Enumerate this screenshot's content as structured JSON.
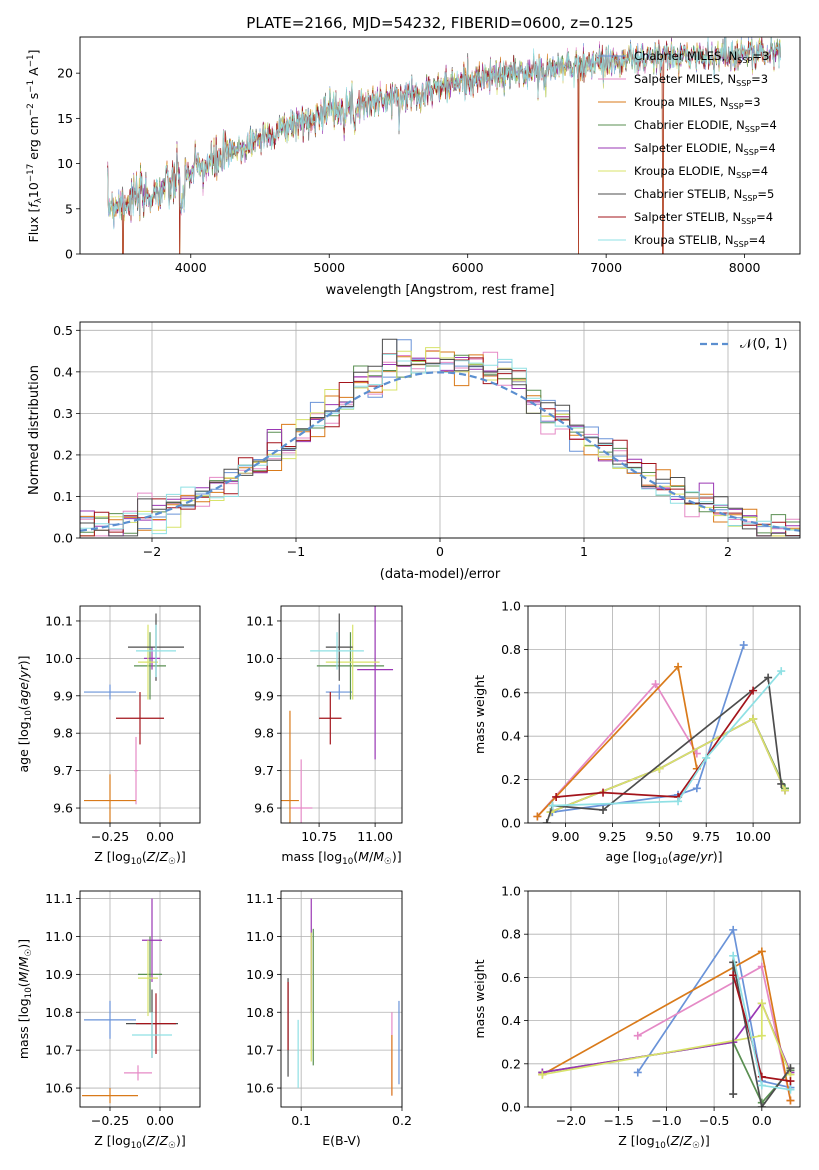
{
  "figure_title": "PLATE=2166, MJD=54232, FIBERID=0600, z=0.125",
  "colors": [
    "#6a93d8",
    "#e58ac6",
    "#d97a1a",
    "#5a8f52",
    "#9a37b4",
    "#d8e36a",
    "#4d4d4d",
    "#a3141b",
    "#8fe0e4"
  ],
  "chart_data": [
    {
      "id": "spectrum",
      "type": "line",
      "xlabel": "wavelength [Angstrom, rest frame]",
      "ylabel": "Flux [f_λ 10⁻¹⁷ erg cm⁻² s⁻¹ A⁻¹]",
      "xlim": [
        3200,
        8400
      ],
      "ylim": [
        0,
        24
      ],
      "xticks": [
        "4000",
        "5000",
        "6000",
        "7000",
        "8000"
      ],
      "yticks": [
        "0",
        "5",
        "10",
        "15",
        "20"
      ],
      "grid": false,
      "legend_position": "top-right",
      "legend": [
        {
          "name": "Chabrier MILES",
          "nssp": "3"
        },
        {
          "name": "Salpeter MILES",
          "nssp": "3"
        },
        {
          "name": "Kroupa MILES",
          "nssp": "3"
        },
        {
          "name": "Chabrier ELODIE",
          "nssp": "4"
        },
        {
          "name": "Salpeter ELODIE",
          "nssp": "4"
        },
        {
          "name": "Kroupa ELODIE",
          "nssp": "4"
        },
        {
          "name": "Chabrier STELIB",
          "nssp": "5"
        },
        {
          "name": "Salpeter STELIB",
          "nssp": "4"
        },
        {
          "name": "Kroupa STELIB",
          "nssp": "4"
        }
      ],
      "nssp_label": "N_SSP",
      "continuum": [
        [
          3400,
          5.4
        ],
        [
          3700,
          6.5
        ],
        [
          3900,
          8.0
        ],
        [
          4000,
          9.0
        ],
        [
          4300,
          11.2
        ],
        [
          4500,
          12.8
        ],
        [
          5000,
          16.0
        ],
        [
          5500,
          17.3
        ],
        [
          6000,
          19.2
        ],
        [
          6500,
          20.3
        ],
        [
          7000,
          21.3
        ],
        [
          7500,
          21.8
        ],
        [
          8000,
          22.2
        ],
        [
          8300,
          22.4
        ]
      ],
      "drops": [
        [
          3510,
          0
        ],
        [
          3920,
          0
        ],
        [
          6800,
          0
        ],
        [
          7410,
          0
        ]
      ]
    },
    {
      "id": "residuals",
      "type": "histogram",
      "xlabel": "(data-model)/error",
      "ylabel": "Normed distribution",
      "xlim": [
        -2.5,
        2.5
      ],
      "ylim": [
        0,
        0.52
      ],
      "xticks": [
        -2,
        -1,
        0,
        1,
        2
      ],
      "yticks": [
        0.0,
        0.1,
        0.2,
        0.3,
        0.4,
        0.5
      ],
      "grid": true,
      "bin_width": 0.1,
      "normal_label": "𝒩(0, 1)",
      "legend_position": "top-right"
    },
    {
      "id": "z_age",
      "type": "errorbar",
      "xlabel": "Z [log10(Z/Z☉)]",
      "ylabel": "age [log10(age/yr)]",
      "xlim": [
        -0.4,
        0.2
      ],
      "ylim": [
        9.56,
        10.14
      ],
      "xticks": [
        -0.25,
        0.0
      ],
      "xtick_labels": [
        "−0.25",
        "0.00"
      ],
      "yticks": [
        9.6,
        9.7,
        9.8,
        9.9,
        10.0,
        10.1
      ],
      "points": [
        {
          "x": -0.25,
          "xerr": 0.13,
          "y": 9.91,
          "yerr": 0.02,
          "c": 0
        },
        {
          "x": -0.12,
          "xerr": 0.01,
          "y": 9.7,
          "yerr": 0.09,
          "c": 1
        },
        {
          "x": -0.25,
          "xerr": 0.13,
          "y": 9.62,
          "yerr": 0.07,
          "c": 2
        },
        {
          "x": -0.05,
          "xerr": 0.08,
          "y": 9.98,
          "yerr": 0.09,
          "c": 3
        },
        {
          "x": -0.04,
          "xerr": 0.04,
          "y": 10.0,
          "yerr": 0.03,
          "c": 4
        },
        {
          "x": -0.06,
          "xerr": 0.05,
          "y": 9.99,
          "yerr": 0.1,
          "c": 5
        },
        {
          "x": -0.02,
          "xerr": 0.14,
          "y": 10.03,
          "yerr": 0.09,
          "c": 6
        },
        {
          "x": -0.1,
          "xerr": 0.12,
          "y": 9.84,
          "yerr": 0.07,
          "c": 7
        },
        {
          "x": -0.02,
          "xerr": 0.1,
          "y": 10.02,
          "yerr": 0.07,
          "c": 8
        }
      ]
    },
    {
      "id": "mass_age",
      "type": "errorbar",
      "xlabel": "mass [log10(M/M☉)]",
      "ylabel": "",
      "xlim": [
        10.58,
        11.12
      ],
      "ylim": [
        9.56,
        10.14
      ],
      "xticks": [
        10.75,
        11.0
      ],
      "xtick_labels": [
        "10.75",
        "11.00"
      ],
      "yticks": [
        9.6,
        9.7,
        9.8,
        9.9,
        10.0,
        10.1
      ],
      "points": [
        {
          "x": 10.84,
          "xerr": 0.06,
          "y": 9.91,
          "yerr": 0.02,
          "c": 0
        },
        {
          "x": 10.67,
          "xerr": 0.05,
          "y": 9.6,
          "yerr": 0.13,
          "c": 1
        },
        {
          "x": 10.62,
          "xerr": 0.04,
          "y": 9.62,
          "yerr": 0.24,
          "c": 2
        },
        {
          "x": 10.89,
          "xerr": 0.15,
          "y": 9.98,
          "yerr": 0.09,
          "c": 3
        },
        {
          "x": 11.0,
          "xerr": 0.08,
          "y": 9.97,
          "yerr": 0.24,
          "c": 4
        },
        {
          "x": 10.9,
          "xerr": 0.12,
          "y": 9.99,
          "yerr": 0.1,
          "c": 5
        },
        {
          "x": 10.84,
          "xerr": 0.06,
          "y": 10.03,
          "yerr": 0.09,
          "c": 6
        },
        {
          "x": 10.8,
          "xerr": 0.05,
          "y": 9.84,
          "yerr": 0.07,
          "c": 7
        },
        {
          "x": 10.83,
          "xerr": 0.12,
          "y": 10.02,
          "yerr": 0.05,
          "c": 8
        }
      ]
    },
    {
      "id": "age_weight",
      "type": "line",
      "xlabel": "age [log10(age/yr)]",
      "ylabel": "mass weight",
      "xlim": [
        8.8,
        10.25
      ],
      "ylim": [
        0.0,
        1.0
      ],
      "xticks": [
        9.0,
        9.25,
        9.5,
        9.75,
        10.0
      ],
      "xtick_labels": [
        "9.00",
        "9.25",
        "9.50",
        "9.75",
        "10.00"
      ],
      "yticks": [
        0.0,
        0.2,
        0.4,
        0.6,
        0.8,
        1.0
      ],
      "series": [
        {
          "c": 0,
          "points": [
            [
              8.93,
              0.05
            ],
            [
              9.6,
              0.13
            ],
            [
              9.7,
              0.16
            ],
            [
              9.95,
              0.82
            ]
          ]
        },
        {
          "c": 1,
          "points": [
            [
              8.85,
              0.03
            ],
            [
              9.48,
              0.64
            ],
            [
              9.7,
              0.32
            ]
          ]
        },
        {
          "c": 2,
          "points": [
            [
              8.85,
              0.03
            ],
            [
              9.6,
              0.72
            ],
            [
              9.7,
              0.25
            ]
          ]
        },
        {
          "c": 3,
          "points": [
            [
              8.92,
              0.05
            ],
            [
              9.5,
              0.25
            ],
            [
              10.0,
              0.48
            ],
            [
              10.17,
              0.16
            ]
          ]
        },
        {
          "c": 4,
          "points": [
            [
              8.92,
              0.05
            ],
            [
              9.5,
              0.25
            ],
            [
              10.0,
              0.48
            ],
            [
              10.17,
              0.15
            ]
          ]
        },
        {
          "c": 5,
          "points": [
            [
              8.92,
              0.05
            ],
            [
              9.5,
              0.25
            ],
            [
              10.0,
              0.48
            ],
            [
              10.17,
              0.15
            ]
          ]
        },
        {
          "c": 6,
          "points": [
            [
              8.9,
              0.0
            ],
            [
              8.93,
              0.08
            ],
            [
              9.2,
              0.06
            ],
            [
              10.08,
              0.67
            ],
            [
              10.15,
              0.18
            ]
          ]
        },
        {
          "c": 7,
          "points": [
            [
              8.95,
              0.12
            ],
            [
              9.2,
              0.14
            ],
            [
              9.6,
              0.12
            ],
            [
              10.0,
              0.61
            ]
          ]
        },
        {
          "c": 8,
          "points": [
            [
              8.93,
              0.08
            ],
            [
              9.6,
              0.1
            ],
            [
              9.75,
              0.3
            ],
            [
              10.15,
              0.7
            ]
          ]
        }
      ]
    },
    {
      "id": "z_mass",
      "type": "errorbar",
      "xlabel": "Z [log10(Z/Z☉)]",
      "ylabel": "mass [log10(M/M☉)]",
      "xlim": [
        -0.4,
        0.2
      ],
      "ylim": [
        10.55,
        11.12
      ],
      "xticks": [
        -0.25,
        0.0
      ],
      "xtick_labels": [
        "−0.25",
        "0.00"
      ],
      "yticks": [
        10.6,
        10.7,
        10.8,
        10.9,
        11.0,
        11.1
      ],
      "points": [
        {
          "x": -0.25,
          "xerr": 0.13,
          "y": 10.78,
          "yerr": 0.05,
          "c": 0
        },
        {
          "x": -0.11,
          "xerr": 0.07,
          "y": 10.64,
          "yerr": 0.02,
          "c": 1
        },
        {
          "x": -0.25,
          "xerr": 0.14,
          "y": 10.58,
          "yerr": 0.02,
          "c": 2
        },
        {
          "x": -0.05,
          "xerr": 0.06,
          "y": 10.9,
          "yerr": 0.1,
          "c": 3
        },
        {
          "x": -0.04,
          "xerr": 0.05,
          "y": 10.99,
          "yerr": 0.11,
          "c": 4
        },
        {
          "x": -0.06,
          "xerr": 0.05,
          "y": 10.89,
          "yerr": 0.1,
          "c": 5
        },
        {
          "x": -0.04,
          "xerr": 0.13,
          "y": 10.77,
          "yerr": 0.09,
          "c": 6
        },
        {
          "x": -0.02,
          "xerr": 0.1,
          "y": 10.77,
          "yerr": 0.08,
          "c": 7
        },
        {
          "x": -0.04,
          "xerr": 0.1,
          "y": 10.74,
          "yerr": 0.06,
          "c": 8
        }
      ]
    },
    {
      "id": "ebv_mass",
      "type": "errorbar",
      "xlabel": "E(B-V)",
      "ylabel": "",
      "xlim": [
        0.08,
        0.2
      ],
      "ylim": [
        10.55,
        11.12
      ],
      "xticks": [
        0.1,
        0.2
      ],
      "xtick_labels": [
        "0.1",
        "0.2"
      ],
      "yticks": [
        10.6,
        10.7,
        10.8,
        10.9,
        11.0,
        11.1
      ],
      "points": [
        {
          "x": 0.197,
          "xerr": 0,
          "y": 10.72,
          "yerr": 0.11,
          "c": 0
        },
        {
          "x": 0.19,
          "xerr": 0,
          "y": 10.69,
          "yerr": 0.11,
          "c": 1
        },
        {
          "x": 0.19,
          "xerr": 0,
          "y": 10.66,
          "yerr": 0.08,
          "c": 2
        },
        {
          "x": 0.112,
          "xerr": 0,
          "y": 10.84,
          "yerr": 0.18,
          "c": 3
        },
        {
          "x": 0.11,
          "xerr": 0,
          "y": 10.95,
          "yerr": 0.15,
          "c": 4
        },
        {
          "x": 0.11,
          "xerr": 0,
          "y": 10.84,
          "yerr": 0.17,
          "c": 5
        },
        {
          "x": 0.087,
          "xerr": 0,
          "y": 10.76,
          "yerr": 0.13,
          "c": 6
        },
        {
          "x": 0.087,
          "xerr": 0,
          "y": 10.79,
          "yerr": 0.09,
          "c": 7
        },
        {
          "x": 0.097,
          "xerr": 0,
          "y": 10.69,
          "yerr": 0.09,
          "c": 8
        }
      ]
    },
    {
      "id": "z_weight",
      "type": "line",
      "xlabel": "Z [log10(Z/Z☉)]",
      "ylabel": "mass weight",
      "xlim": [
        -2.45,
        0.4
      ],
      "ylim": [
        0.0,
        1.0
      ],
      "xticks": [
        -2.0,
        -1.5,
        -1.0,
        -0.5,
        0.0
      ],
      "xtick_labels": [
        "−2.0",
        "−1.5",
        "−1.0",
        "−0.5",
        "0.0"
      ],
      "yticks": [
        0.0,
        0.2,
        0.4,
        0.6,
        0.8,
        1.0
      ],
      "series": [
        {
          "c": 0,
          "points": [
            [
              -1.3,
              0.16
            ],
            [
              -0.3,
              0.82
            ],
            [
              0.0,
              0.12
            ],
            [
              0.3,
              0.09
            ]
          ]
        },
        {
          "c": 1,
          "points": [
            [
              -1.3,
              0.33
            ],
            [
              0.0,
              0.65
            ],
            [
              0.3,
              0.03
            ]
          ]
        },
        {
          "c": 2,
          "points": [
            [
              -2.3,
              0.15
            ],
            [
              0.0,
              0.72
            ],
            [
              0.3,
              0.03
            ]
          ]
        },
        {
          "c": 3,
          "points": [
            [
              -2.3,
              0.16
            ],
            [
              -0.3,
              0.3
            ],
            [
              0.0,
              0.02
            ],
            [
              0.3,
              0.17
            ]
          ]
        },
        {
          "c": 4,
          "points": [
            [
              -2.3,
              0.16
            ],
            [
              -0.3,
              0.3
            ],
            [
              0.0,
              0.48
            ],
            [
              0.3,
              0.16
            ]
          ]
        },
        {
          "c": 5,
          "points": [
            [
              -2.3,
              0.15
            ],
            [
              0.0,
              0.33
            ],
            [
              0.0,
              0.48
            ],
            [
              0.3,
              0.15
            ]
          ]
        },
        {
          "c": 6,
          "points": [
            [
              -0.3,
              0.06
            ],
            [
              -0.3,
              0.67
            ],
            [
              0.0,
              0.0
            ],
            [
              0.3,
              0.18
            ]
          ]
        },
        {
          "c": 7,
          "points": [
            [
              -0.3,
              0.61
            ],
            [
              0.0,
              0.14
            ],
            [
              0.3,
              0.12
            ]
          ]
        },
        {
          "c": 8,
          "points": [
            [
              -0.3,
              0.7
            ],
            [
              0.0,
              0.1
            ],
            [
              0.3,
              0.08
            ]
          ]
        }
      ]
    }
  ]
}
